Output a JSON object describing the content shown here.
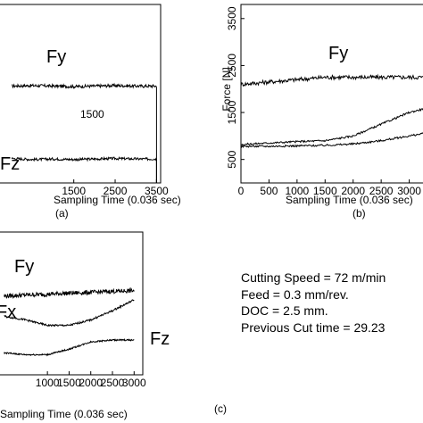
{
  "chart_data": [
    {
      "type": "line",
      "panel_label": "(a)",
      "xlabel": "Sampling Time (0.036 sec)",
      "ylabel": "",
      "xlim": [
        -500,
        3600
      ],
      "ylim": [
        300,
        3800
      ],
      "x_ticks": [
        "1500",
        "2500",
        "3500"
      ],
      "x_tick_values": [
        1500,
        2500,
        3500
      ],
      "annotation": "1500",
      "series": [
        {
          "name": "Fy",
          "x": [
            0,
            500,
            1000,
            1500,
            2000,
            2500,
            3000,
            3500
          ],
          "values": [
            2200,
            2210,
            2200,
            2190,
            2200,
            2210,
            2200,
            2200
          ]
        },
        {
          "name": "Fz",
          "x": [
            0,
            500,
            1000,
            1500,
            2000,
            2500,
            3000,
            3500
          ],
          "values": [
            780,
            760,
            770,
            760,
            770,
            780,
            770,
            770
          ]
        }
      ]
    },
    {
      "type": "line",
      "panel_label": "(b)",
      "xlabel": "Sampling Time (0.036 sec)",
      "ylabel": "Force [N]",
      "xlim": [
        0,
        3500
      ],
      "ylim": [
        0,
        3800
      ],
      "y_ticks": [
        "500",
        "1500",
        "2500",
        "3500"
      ],
      "y_tick_values": [
        500,
        1500,
        2500,
        3500
      ],
      "x_ticks": [
        "0",
        "500",
        "1000",
        "1500",
        "2000",
        "2500",
        "3000",
        "3500"
      ],
      "x_tick_values": [
        0,
        500,
        1000,
        1500,
        2000,
        2500,
        3000,
        3500
      ],
      "series": [
        {
          "name": "Fy",
          "x": [
            0,
            500,
            1000,
            1500,
            2000,
            2500,
            3000,
            3500
          ],
          "values": [
            2100,
            2150,
            2200,
            2250,
            2250,
            2250,
            2250,
            2250
          ]
        },
        {
          "name": "",
          "x": [
            0,
            500,
            1000,
            1500,
            2000,
            2500,
            3000,
            3500
          ],
          "values": [
            820,
            850,
            880,
            900,
            1000,
            1250,
            1500,
            1650
          ]
        },
        {
          "name": "",
          "x": [
            0,
            500,
            1000,
            1500,
            2000,
            2500,
            3000,
            3500
          ],
          "values": [
            780,
            780,
            790,
            800,
            830,
            900,
            1000,
            1100
          ]
        }
      ]
    },
    {
      "type": "line",
      "panel_label": "(c)",
      "xlabel": "Sampling Time (0.036 sec)",
      "ylabel": "",
      "xlim": [
        -300,
        3200
      ],
      "ylim": [
        300,
        4200
      ],
      "x_ticks": [
        "1000",
        "1500",
        "2000",
        "2500",
        "3000"
      ],
      "x_tick_values": [
        1000,
        1500,
        2000,
        2500,
        3000
      ],
      "series": [
        {
          "name": "Fy",
          "x": [
            0,
            500,
            1000,
            1500,
            2000,
            2500,
            3000
          ],
          "values": [
            2450,
            2480,
            2500,
            2530,
            2550,
            2580,
            2600
          ]
        },
        {
          "name": "Fx",
          "x": [
            0,
            500,
            1000,
            1500,
            2000,
            2500,
            3000
          ],
          "values": [
            1900,
            1800,
            1650,
            1650,
            1800,
            2050,
            2350
          ]
        },
        {
          "name": "Fz",
          "x": [
            0,
            500,
            1000,
            1500,
            2000,
            2500,
            3000
          ],
          "values": [
            900,
            850,
            850,
            1000,
            1200,
            1250,
            1250
          ]
        }
      ]
    }
  ],
  "cutting_info": {
    "speed": "Cutting Speed = 72 m/min",
    "feed": "Feed = 0.3 mm/rev.",
    "doc": "DOC = 2.5 mm.",
    "previous_cut": "Previous Cut time = 29.23"
  }
}
